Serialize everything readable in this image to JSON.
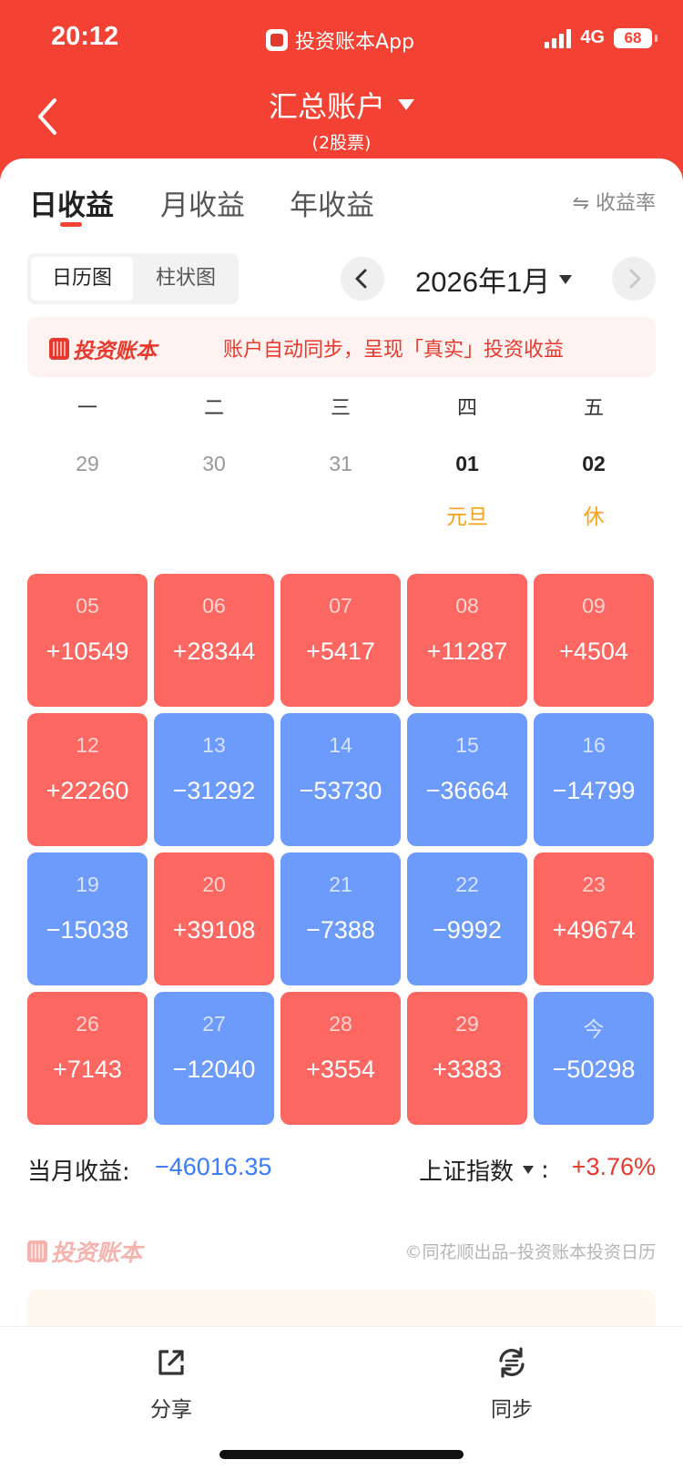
{
  "status_bar": {
    "time": "20:12",
    "app": "投资账本App",
    "network": "4G",
    "battery": "68"
  },
  "header": {
    "title": "汇总账户",
    "subtitle": "(2股票)"
  },
  "tabs": [
    "日收益",
    "月收益",
    "年收益"
  ],
  "rate_toggle": "⇋ 收益率",
  "view_toggle": {
    "calendar": "日历图",
    "bar": "柱状图"
  },
  "month": "2026年1月",
  "banner": {
    "brand": "投资账本",
    "text": "账户自动同步，呈现「真实」投资收益"
  },
  "weekdays": [
    "一",
    "二",
    "三",
    "四",
    "五"
  ],
  "prev_row": {
    "dates": [
      "29",
      "30",
      "31",
      "01",
      "02"
    ],
    "holidays": [
      "",
      "",
      "",
      "元旦",
      "休"
    ]
  },
  "calendar_rows": [
    [
      {
        "day": "05",
        "value": "+10549"
      },
      {
        "day": "06",
        "value": "+28344"
      },
      {
        "day": "07",
        "value": "+5417"
      },
      {
        "day": "08",
        "value": "+11287"
      },
      {
        "day": "09",
        "value": "+4504"
      }
    ],
    [
      {
        "day": "12",
        "value": "+22260"
      },
      {
        "day": "13",
        "value": "−31292"
      },
      {
        "day": "14",
        "value": "−53730"
      },
      {
        "day": "15",
        "value": "−36664"
      },
      {
        "day": "16",
        "value": "−14799"
      }
    ],
    [
      {
        "day": "19",
        "value": "−15038"
      },
      {
        "day": "20",
        "value": "+39108"
      },
      {
        "day": "21",
        "value": "−7388"
      },
      {
        "day": "22",
        "value": "−9992"
      },
      {
        "day": "23",
        "value": "+49674"
      }
    ],
    [
      {
        "day": "26",
        "value": "+7143"
      },
      {
        "day": "27",
        "value": "−12040"
      },
      {
        "day": "28",
        "value": "+3554"
      },
      {
        "day": "29",
        "value": "+3383"
      },
      {
        "day": "今",
        "value": "−50298"
      }
    ]
  ],
  "summary": {
    "label": "当月收益:",
    "value": "−46016.35",
    "index_label": "上证指数",
    "index_colon": ":",
    "index_value": "+3.76%"
  },
  "footer": {
    "brand": "投资账本",
    "credit": "©同花顺出品–投资账本投资日历"
  },
  "bottom_bar": {
    "share": "分享",
    "sync": "同步"
  },
  "colors": {
    "header": "#F34233",
    "gain": "#FD6762",
    "loss": "#6C9BFC",
    "holiday": "#F7A21B"
  }
}
